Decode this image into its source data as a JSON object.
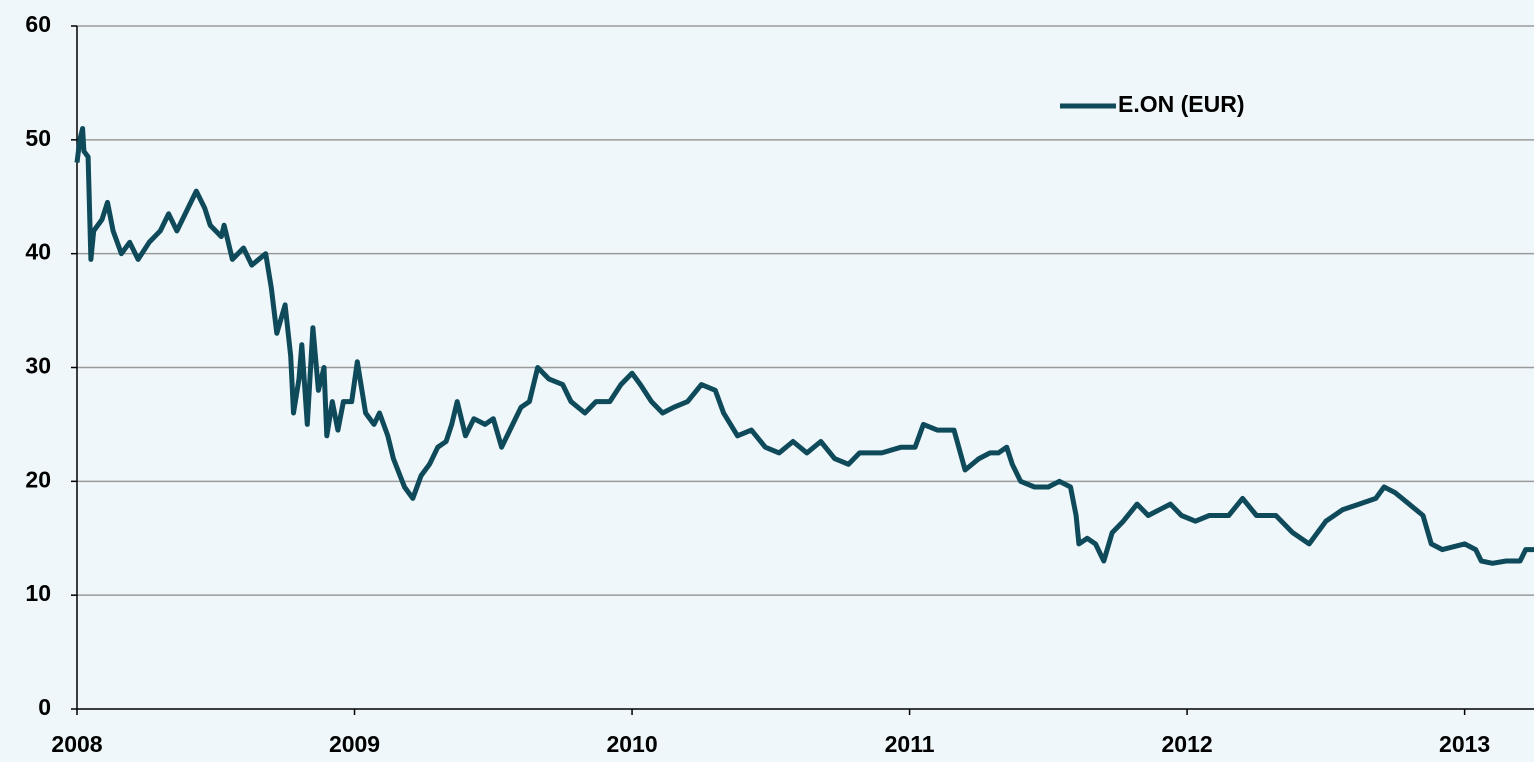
{
  "chart_data": {
    "type": "line",
    "x": [
      2008.0,
      2008.01,
      2008.02,
      2008.025,
      2008.04,
      2008.05,
      2008.06,
      2008.09,
      2008.11,
      2008.13,
      2008.16,
      2008.19,
      2008.22,
      2008.26,
      2008.3,
      2008.33,
      2008.36,
      2008.4,
      2008.43,
      2008.46,
      2008.48,
      2008.52,
      2008.53,
      2008.56,
      2008.6,
      2008.63,
      2008.68,
      2008.7,
      2008.72,
      2008.75,
      2008.77,
      2008.78,
      2008.8,
      2008.81,
      2008.83,
      2008.85,
      2008.87,
      2008.89,
      2008.9,
      2008.92,
      2008.94,
      2008.96,
      2008.99,
      2009.01,
      2009.04,
      2009.07,
      2009.09,
      2009.12,
      2009.14,
      2009.18,
      2009.21,
      2009.24,
      2009.27,
      2009.3,
      2009.33,
      2009.35,
      2009.37,
      2009.4,
      2009.43,
      2009.47,
      2009.5,
      2009.53,
      2009.56,
      2009.6,
      2009.63,
      2009.66,
      2009.7,
      2009.75,
      2009.78,
      2009.83,
      2009.87,
      2009.92,
      2009.96,
      2010.0,
      2010.03,
      2010.07,
      2010.11,
      2010.15,
      2010.2,
      2010.25,
      2010.3,
      2010.33,
      2010.38,
      2010.43,
      2010.48,
      2010.53,
      2010.58,
      2010.63,
      2010.68,
      2010.73,
      2010.78,
      2010.82,
      2010.9,
      2010.97,
      2011.02,
      2011.05,
      2011.1,
      2011.16,
      2011.2,
      2011.25,
      2011.29,
      2011.32,
      2011.35,
      2011.37,
      2011.4,
      2011.45,
      2011.5,
      2011.54,
      2011.58,
      2011.6,
      2011.61,
      2011.64,
      2011.67,
      2011.7,
      2011.73,
      2011.77,
      2011.82,
      2011.86,
      2011.9,
      2011.94,
      2011.98,
      2012.03,
      2012.08,
      2012.15,
      2012.2,
      2012.25,
      2012.32,
      2012.38,
      2012.44,
      2012.5,
      2012.56,
      2012.62,
      2012.68,
      2012.71,
      2012.75,
      2012.8,
      2012.85,
      2012.88,
      2012.92,
      2013.0,
      2013.04,
      2013.06,
      2013.1,
      2013.15,
      2013.2,
      2013.22,
      2013.25
    ],
    "series": [
      {
        "name": "E.ON (EUR)",
        "color": "#0f4a5b",
        "values": [
          48,
          50,
          51,
          49,
          48.5,
          39.5,
          42,
          43,
          44.5,
          42,
          40,
          41,
          39.5,
          41,
          42,
          43.5,
          42,
          44,
          45.5,
          44,
          42.5,
          41.5,
          42.5,
          39.5,
          40.5,
          39,
          40,
          37,
          33,
          35.5,
          31,
          26,
          29,
          32,
          25,
          33.5,
          28,
          30,
          24,
          27,
          24.5,
          27,
          27,
          30.5,
          26,
          25,
          26,
          24,
          22,
          19.5,
          18.5,
          20.5,
          21.5,
          23,
          23.5,
          25,
          27,
          24,
          25.5,
          25,
          25.5,
          23,
          24.5,
          26.5,
          27,
          30,
          29,
          28.5,
          27,
          26,
          27,
          27,
          28.5,
          29.5,
          28.5,
          27,
          26,
          26.5,
          27,
          28.5,
          28,
          26,
          24,
          24.5,
          23,
          22.5,
          23.5,
          22.5,
          23.5,
          22,
          21.5,
          22.5,
          22.5,
          23,
          23,
          25,
          24.5,
          24.5,
          21,
          22,
          22.5,
          22.5,
          23,
          21.5,
          20,
          19.5,
          19.5,
          20,
          19.5,
          17,
          14.5,
          15,
          14.5,
          13,
          15.5,
          16.5,
          18,
          17,
          17.5,
          18,
          17,
          16.5,
          17,
          17,
          18.5,
          17,
          17,
          15.5,
          14.5,
          16.5,
          17.5,
          18,
          18.5,
          19.5,
          19,
          18,
          17,
          14.5,
          14,
          14.5,
          14,
          13,
          12.8,
          13,
          13,
          14,
          14
        ]
      }
    ],
    "xlim": [
      2008,
      2013.25
    ],
    "xticks": [
      2008,
      2009,
      2010,
      2011,
      2012,
      2013
    ],
    "ylim": [
      0,
      60
    ],
    "yticks": [
      0,
      10,
      20,
      30,
      40,
      50,
      60
    ],
    "grid": true,
    "legend_position": "top-right"
  }
}
